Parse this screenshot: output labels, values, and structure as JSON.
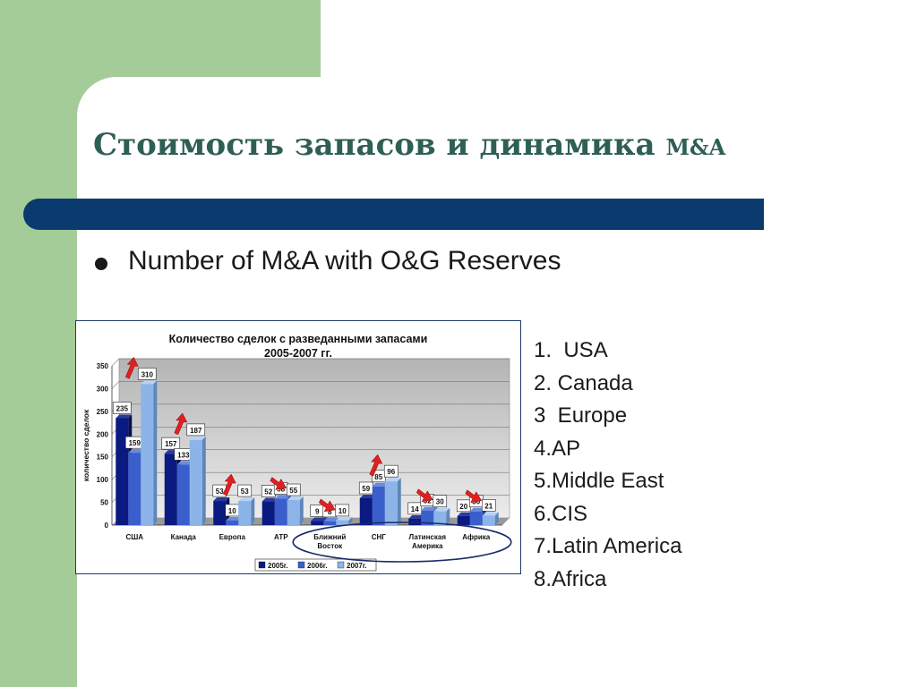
{
  "slide": {
    "title_main": "Стоимость запасов и динамика ",
    "title_suffix": "M&A",
    "bullet": "Number of M&A with O&G Reserves",
    "list": [
      "1.  USA",
      "2. Canada",
      "3  Europe",
      "4.AP",
      "5.Middle East",
      "6.CIS",
      "7.Latin America",
      "8.Africa"
    ]
  },
  "colors": {
    "green_bg": "#a3cc98",
    "band": "#0a3a6e",
    "title": "#2e5f55",
    "s2005": "#0a1a80",
    "s2006": "#3a5fcc",
    "s2007": "#8cb4e8",
    "arrow": "#e02020",
    "ellipse": "#1a2a6a"
  },
  "chart_data": {
    "type": "bar",
    "title": "Количество сделок с разведанными запасами\n2005-2007 гг.",
    "ylabel": "количество сделок",
    "xlabel": "",
    "ylim": [
      0,
      350
    ],
    "yticks": [
      0,
      50,
      100,
      150,
      200,
      250,
      300,
      350
    ],
    "grid": true,
    "legend": "bottom",
    "categories": [
      "США",
      "Канада",
      "Европа",
      "АТР",
      "Ближний\nВосток",
      "СНГ",
      "Латинская\nАмерика",
      "Африка"
    ],
    "series": [
      {
        "name": "2005г.",
        "values": [
          235,
          157,
          53,
          52,
          9,
          59,
          14,
          20
        ]
      },
      {
        "name": "2006г.",
        "values": [
          159,
          133,
          10,
          58,
          8,
          85,
          32,
          30
        ]
      },
      {
        "name": "2007г.",
        "values": [
          310,
          187,
          53,
          55,
          10,
          96,
          30,
          21
        ]
      }
    ],
    "annotations": {
      "arrows": [
        {
          "category": 0,
          "direction": "up"
        },
        {
          "category": 1,
          "direction": "up"
        },
        {
          "category": 2,
          "direction": "up"
        },
        {
          "category": 3,
          "direction": "down"
        },
        {
          "category": 4,
          "direction": "down"
        },
        {
          "category": 5,
          "direction": "up"
        },
        {
          "category": 6,
          "direction": "down"
        },
        {
          "category": 7,
          "direction": "down"
        }
      ],
      "highlight_categories": [
        4,
        5,
        6,
        7
      ]
    }
  }
}
